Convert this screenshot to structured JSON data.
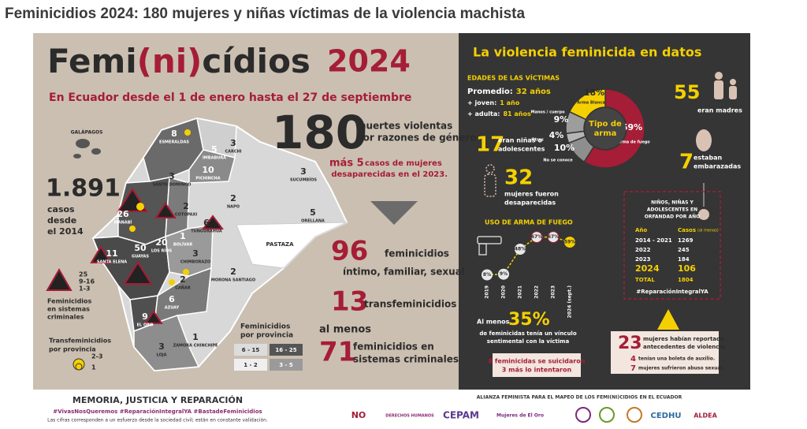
{
  "title": "Feminicidios 2024: 180 mujeres y niñas víctimas de la violencia machista",
  "poster": {
    "heading_parts": [
      "Femi",
      "(ni)",
      "cídios"
    ],
    "year": "2024",
    "subtitle": "En Ecuador desde el 1 de enero hasta el 27 de septiembre",
    "total": {
      "value": "180",
      "lines": [
        "muertes violentas",
        "por razones de género"
      ]
    },
    "missing": {
      "lead": "más 5",
      "lines": [
        "casos de mujeres",
        "desaparecidas en el 2023."
      ]
    },
    "cases_since": {
      "value": "1.891",
      "lines": [
        "casos",
        "desde",
        "el 2014"
      ]
    },
    "stats": [
      {
        "value": "96",
        "lines": [
          "feminicidios",
          "íntimo, familiar, sexual"
        ]
      },
      {
        "value": "13",
        "lines": [
          "transfeminicidios"
        ]
      },
      {
        "prefix": "al menos",
        "value": "71",
        "lines": [
          "feminicidios en",
          "sistemas criminales"
        ]
      }
    ],
    "galapagos": "GALÁPAGOS",
    "pastaza": "PASTAZA",
    "provinces": [
      {
        "name": "ESMERALDAS",
        "value": "8"
      },
      {
        "name": "CARCHI",
        "value": "3"
      },
      {
        "name": "IMBABURA",
        "value": "5"
      },
      {
        "name": "PICHINCHA",
        "value": "10"
      },
      {
        "name": "SUCUMBÍOS",
        "value": "3"
      },
      {
        "name": "SANTO DOMINGO",
        "value": "3"
      },
      {
        "name": "COTOPAXI",
        "value": "2"
      },
      {
        "name": "NAPO",
        "value": "2"
      },
      {
        "name": "ORELLANA",
        "value": "5"
      },
      {
        "name": "MANABÍ",
        "value": "26"
      },
      {
        "name": "TUNGURAHUA",
        "value": "6"
      },
      {
        "name": "LOS RÍOS",
        "value": "20"
      },
      {
        "name": "BOLÍVAR",
        "value": "1"
      },
      {
        "name": "GUAYAS",
        "value": "50"
      },
      {
        "name": "SANTA ELENA",
        "value": "11"
      },
      {
        "name": "CHIMBORAZO",
        "value": "3"
      },
      {
        "name": "MORONA SANTIAGO",
        "value": "2"
      },
      {
        "name": "CAÑAR",
        "value": "2"
      },
      {
        "name": "AZUAY",
        "value": "6"
      },
      {
        "name": "EL ORO",
        "value": "9"
      },
      {
        "name": "LOJA",
        "value": "3"
      },
      {
        "name": "ZAMORA CHINCHIPE",
        "value": "1"
      }
    ],
    "crime_legend": {
      "items": [
        "25",
        "9-16",
        "1-3"
      ],
      "title_lines": [
        "Feminicidios",
        "en sistemas",
        "criminales"
      ]
    },
    "trans_legend": {
      "title_lines": [
        "Transfeminicidios",
        "por provincia"
      ],
      "items": [
        "2-3",
        "1"
      ]
    },
    "province_legend": {
      "title_lines": [
        "Feminicidios",
        "por provincia"
      ],
      "items": [
        "6 - 15",
        "16 - 25",
        "1 - 2",
        "3 - 5"
      ]
    }
  },
  "data_panel": {
    "title": "La violencia feminicida en datos",
    "ages": {
      "title": "EDADES DE LAS VÍCTIMAS",
      "lines": [
        {
          "label": "Promedio:",
          "value": "32 años"
        },
        {
          "label": "+ joven:",
          "value": "1 año"
        },
        {
          "label": "+ adulta:",
          "value": "81 años"
        }
      ]
    },
    "weapon_chart": {
      "type": "pie",
      "title_lines": [
        "Tipo de",
        "arma"
      ],
      "categories": [
        "Arma de fuego",
        "No se conoce",
        "Otros",
        "Manos / cuerpo",
        "Arma Blanca"
      ],
      "values": [
        59,
        10,
        4,
        9,
        18
      ],
      "value_labels": [
        "59%",
        "10%",
        "4%",
        "9%",
        "18%"
      ],
      "colors": [
        "#a51d36",
        "#8e8e8e",
        "#b5b5b5",
        "#9d9d9d",
        "#f5d000"
      ]
    },
    "mothers": {
      "value": "55",
      "lines": [
        "eran madres"
      ]
    },
    "minors": {
      "value": "17",
      "lines": [
        "eran niñas o",
        "adolescentes"
      ]
    },
    "pregnant": {
      "value": "7",
      "lines": [
        "estaban",
        "embarazadas"
      ]
    },
    "disappeared": {
      "value": "32",
      "lines": [
        "mujeres fueron",
        "desaparecidas"
      ]
    },
    "firearm_chart": {
      "type": "line",
      "title": "USO DE ARMA DE FUEGO",
      "categories": [
        "2019",
        "2020",
        "2021",
        "2022",
        "2023",
        "2024 (sept.)"
      ],
      "values": [
        8,
        9,
        48,
        67,
        67,
        59
      ],
      "value_labels": [
        "8%",
        "9%",
        "48%",
        "67%",
        "67%",
        "59%"
      ],
      "ylim": [
        0,
        80
      ],
      "color": "#f5d000"
    },
    "orphans": {
      "title_lines": [
        "NIÑOS, NIÑAS Y",
        "ADOLESCENTES EN",
        "ORFANDAD POR AÑO"
      ],
      "header": [
        "Año",
        "Casos"
      ],
      "header_note": "(al menos)",
      "rows": [
        [
          "2014 - 2021",
          "1269"
        ],
        [
          "2022",
          "245"
        ],
        [
          "2023",
          "184"
        ],
        [
          "2024",
          "106"
        ],
        [
          "TOTAL",
          "1804"
        ]
      ],
      "hashtag": "#ReparaciónIntegralYA"
    },
    "bond": {
      "prefix": "Al menos",
      "value": "35%",
      "lines": [
        "de feminicidas tenía un vínculo",
        "sentimental con la víctima"
      ]
    },
    "suicide": {
      "lines": [
        "8 feminicidas se suicidaron",
        "3 más lo intentaron"
      ]
    },
    "violence": {
      "value": "23",
      "lines": [
        "mujeres habían reportado",
        "antecedentes de violencia."
      ],
      "items": [
        {
          "value": "4",
          "text": "tenían una boleta de auxilio."
        },
        {
          "value": "7",
          "text": "mujeres sufrieron abuso sexual."
        }
      ]
    }
  },
  "footer": {
    "motto": "MEMORIA, JUSTICIA Y REPARACIÓN",
    "hashtags": "#VivasNosQueremos  #ReparaciónIntegralYA  #BastadeFeminicidios",
    "note": "Las cifras corresponden a un esfuerzo desde la sociedad civil; están en constante validación.",
    "alliance": "ALIANZA FEMINISTA PARA EL MAPEO DE LOS FEMI(NI)CIDIOS EN EL ECUADOR",
    "logos": [
      "NO",
      "DERECHOS HUMANOS",
      "CEPAM",
      "Mujeres de El Oro",
      "CEDHU",
      "ALDEA"
    ]
  }
}
